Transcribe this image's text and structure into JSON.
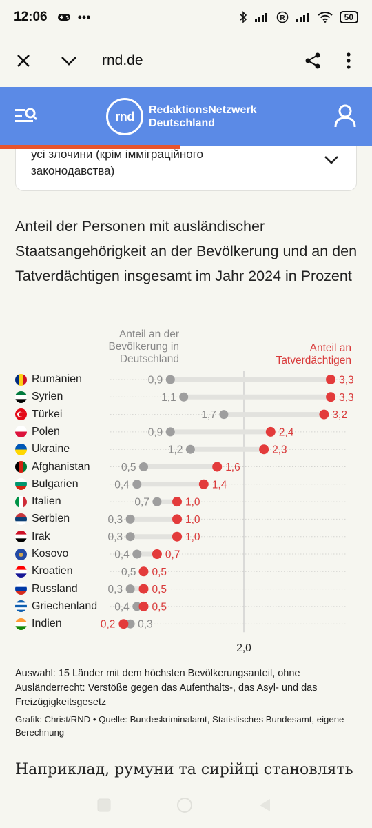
{
  "status_bar": {
    "time": "12:06",
    "more": "•••",
    "battery": "50"
  },
  "browser": {
    "url": "rnd.de"
  },
  "site": {
    "logo_mark": "rnd",
    "logo_line1": "RedaktionsNetzwerk",
    "logo_line2": "Deutschland"
  },
  "dropdown": {
    "text": "усі злочини (крім імміграційного законодавства)"
  },
  "chart_data": {
    "type": "scatter",
    "subtype": "dumbbell",
    "title": "Anteil der Personen mit ausländischer Staatsangehörigkeit an der Bevölkerung und an den Tatverdächtigen insgesamt im Jahr 2024 in Prozent",
    "series_labels": {
      "population": "Anteil an der Bevölkerung in Deutschland",
      "suspects": "Anteil an Tatverdächtigen"
    },
    "colors": {
      "population": "#9e9e9e",
      "suspects": "#e33b3b",
      "connector": "#e2e2de",
      "grid": "#cfcfcf"
    },
    "reference_line": {
      "value": 2.0,
      "label": "2,0"
    },
    "xlim": [
      0,
      3.5
    ],
    "rows": [
      {
        "country": "Rumänien",
        "population": 0.9,
        "suspects": 3.3,
        "pop_label": "0,9",
        "sus_label": "3,3"
      },
      {
        "country": "Syrien",
        "population": 1.1,
        "suspects": 3.3,
        "pop_label": "1,1",
        "sus_label": "3,3"
      },
      {
        "country": "Türkei",
        "population": 1.7,
        "suspects": 3.2,
        "pop_label": "1,7",
        "sus_label": "3,2"
      },
      {
        "country": "Polen",
        "population": 0.9,
        "suspects": 2.4,
        "pop_label": "0,9",
        "sus_label": "2,4"
      },
      {
        "country": "Ukraine",
        "population": 1.2,
        "suspects": 2.3,
        "pop_label": "1,2",
        "sus_label": "2,3"
      },
      {
        "country": "Afghanistan",
        "population": 0.5,
        "suspects": 1.6,
        "pop_label": "0,5",
        "sus_label": "1,6"
      },
      {
        "country": "Bulgarien",
        "population": 0.4,
        "suspects": 1.4,
        "pop_label": "0,4",
        "sus_label": "1,4"
      },
      {
        "country": "Italien",
        "population": 0.7,
        "suspects": 1.0,
        "pop_label": "0,7",
        "sus_label": "1,0"
      },
      {
        "country": "Serbien",
        "population": 0.3,
        "suspects": 1.0,
        "pop_label": "0,3",
        "sus_label": "1,0"
      },
      {
        "country": "Irak",
        "population": 0.3,
        "suspects": 1.0,
        "pop_label": "0,3",
        "sus_label": "1,0"
      },
      {
        "country": "Kosovo",
        "population": 0.4,
        "suspects": 0.7,
        "pop_label": "0,4",
        "sus_label": "0,7"
      },
      {
        "country": "Kroatien",
        "population": 0.5,
        "suspects": 0.5,
        "pop_label": "0,5",
        "sus_label": "0,5"
      },
      {
        "country": "Russland",
        "population": 0.3,
        "suspects": 0.5,
        "pop_label": "0,3",
        "sus_label": "0,5"
      },
      {
        "country": "Griechenland",
        "population": 0.4,
        "suspects": 0.5,
        "pop_label": "0,4",
        "sus_label": "0,5"
      },
      {
        "country": "Indien",
        "population": 0.3,
        "suspects": 0.2,
        "pop_label": "0,3",
        "sus_label": "0,2"
      }
    ],
    "footnote": "Auswahl: 15 Länder mit dem höchsten Bevölkerungsanteil, ohne Ausländerrecht: Verstöße gegen das Aufenthalts-, das Asyl- und das Freizügigkeitsgesetz",
    "credits": "Grafik: Christ/RND • Quelle: Bundeskriminalamt, Statistisches Bundesamt, eigene Berechnung"
  },
  "article": {
    "next_paragraph": "Наприклад, румуни та сирійці становлять"
  }
}
